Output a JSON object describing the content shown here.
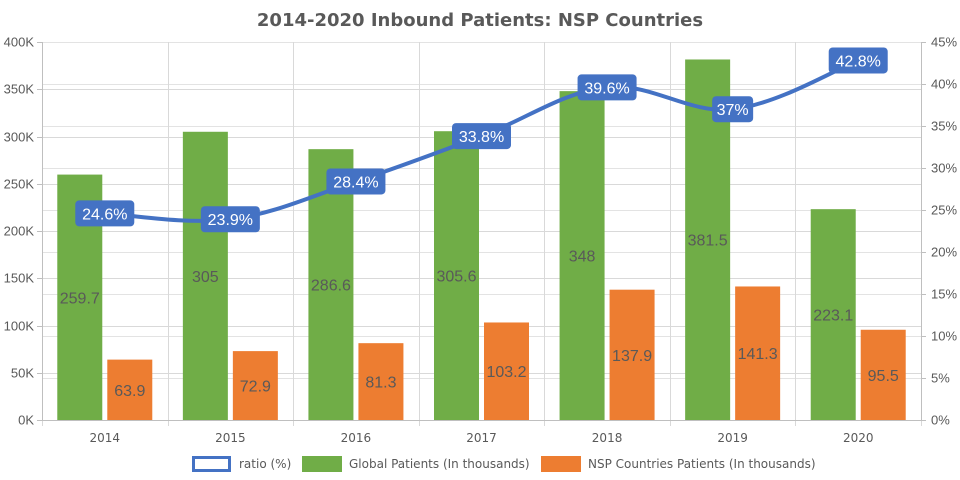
{
  "chart_data": {
    "type": "bar",
    "title": "2014-2020 Inbound Patients: NSP Countries",
    "categories": [
      "2014",
      "2015",
      "2016",
      "2017",
      "2018",
      "2019",
      "2020"
    ],
    "series": [
      {
        "name": "ratio (%)",
        "type": "line",
        "axis": "right",
        "color": "#4472C4",
        "values": [
          24.6,
          23.9,
          28.4,
          33.8,
          39.6,
          37,
          42.8
        ],
        "labels": [
          "24.6%",
          "23.9%",
          "28.4%",
          "33.8%",
          "39.6%",
          "37%",
          "42.8%"
        ]
      },
      {
        "name": "Global Patients (In thousands)",
        "type": "bar",
        "axis": "left",
        "color": "#70AD47",
        "values": [
          259.7,
          305,
          286.6,
          305.6,
          348,
          381.5,
          223.1
        ],
        "labels": [
          "259.7",
          "305",
          "286.6",
          "305.6",
          "348",
          "381.5",
          "223.1"
        ]
      },
      {
        "name": "NSP Countries Patients (In thousands)",
        "type": "bar",
        "axis": "left",
        "color": "#ED7D31",
        "values": [
          63.9,
          72.9,
          81.3,
          103.2,
          137.9,
          141.3,
          95.5
        ],
        "labels": [
          "63.9",
          "72.9",
          "81.3",
          "103.2",
          "137.9",
          "141.3",
          "95.5"
        ]
      }
    ],
    "y_left": {
      "label": "",
      "ylim": [
        0,
        400
      ],
      "ticks": [
        0,
        50,
        100,
        150,
        200,
        250,
        300,
        350,
        400
      ],
      "tick_labels": [
        "0K",
        "50K",
        "100K",
        "150K",
        "200K",
        "250K",
        "300K",
        "350K",
        "400K"
      ]
    },
    "y_right": {
      "label": "",
      "ylim": [
        0,
        45
      ],
      "ticks": [
        0,
        5,
        10,
        15,
        20,
        25,
        30,
        35,
        40,
        45
      ],
      "tick_labels": [
        "0%",
        "5%",
        "10%",
        "15%",
        "20%",
        "25%",
        "30%",
        "35%",
        "40%",
        "45%"
      ]
    },
    "xlabel": "",
    "grid": true,
    "legend_position": "bottom"
  }
}
